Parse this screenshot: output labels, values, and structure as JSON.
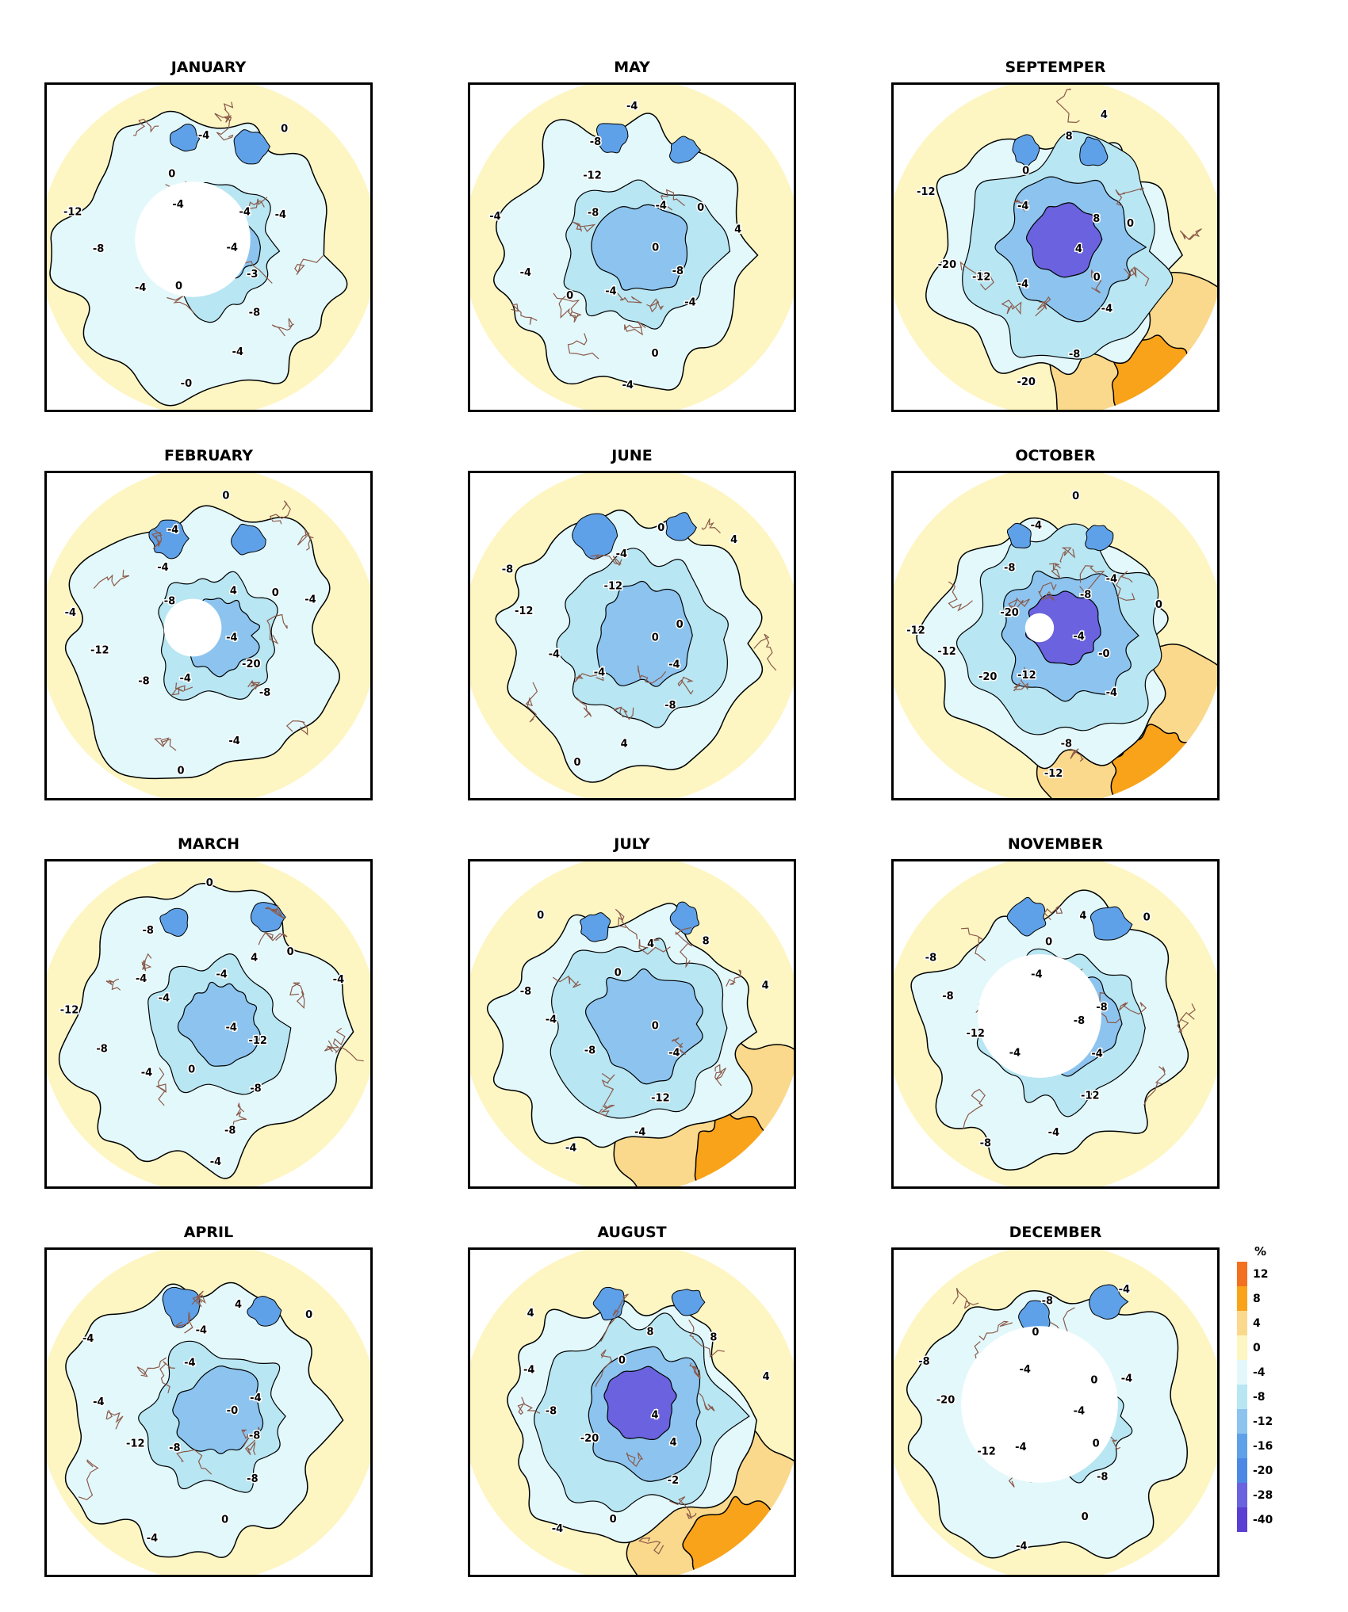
{
  "panels": [
    {
      "month": "JANUARY",
      "labels": [
        "-4",
        "-3",
        "-8",
        "-4",
        "-0",
        "0",
        "-4",
        "-8",
        "-12",
        "-4",
        "0",
        "-4",
        "0",
        "-4",
        "-4"
      ],
      "anom": 0.25,
      "hole": 0.28
    },
    {
      "month": "FEBRUARY",
      "labels": [
        "-4",
        "-20",
        "-8",
        "-4",
        "0",
        "-4",
        "-8",
        "-12",
        "-4",
        "-8",
        "-4",
        "-4",
        "0",
        "4",
        "0",
        "-4"
      ],
      "anom": 0.3,
      "hole": 0.14
    },
    {
      "month": "MARCH",
      "labels": [
        "-4",
        "-12",
        "-8",
        "-8",
        "-4",
        "0",
        "-4",
        "-8",
        "-12",
        "-4",
        "-4",
        "-8",
        "0",
        "-4",
        "4",
        "0",
        "-4"
      ],
      "anom": 0.35,
      "hole": 0
    },
    {
      "month": "APRIL",
      "labels": [
        "-0",
        "-8",
        "-8",
        "0",
        "-4",
        "-8",
        "-12",
        "-4",
        "-4",
        "-4",
        "-4",
        "4",
        "0",
        "-4"
      ],
      "anom": 0.45,
      "hole": 0
    },
    {
      "month": "MAY",
      "labels": [
        "0",
        "-8",
        "-4",
        "0",
        "-4",
        "-4",
        "0",
        "-4",
        "-4",
        "-8",
        "-12",
        "-8",
        "-4",
        "-4",
        "0",
        "4"
      ],
      "anom": 0.5,
      "hole": 0
    },
    {
      "month": "JUNE",
      "labels": [
        "0",
        "-4",
        "-8",
        "4",
        "0",
        "-4",
        "-4",
        "-12",
        "-8",
        "-12",
        "-4",
        "0",
        "4",
        "0"
      ],
      "anom": 0.6,
      "hole": 0
    },
    {
      "month": "JULY",
      "labels": [
        "0",
        "-4",
        "-12",
        "-4",
        "-4",
        "-8",
        "-4",
        "-8",
        "0",
        "0",
        "4",
        "8",
        "4"
      ],
      "anom": 0.7,
      "hole": 0
    },
    {
      "month": "AUGUST",
      "labels": [
        "4",
        "4",
        "-2",
        "0",
        "-4",
        "-20",
        "-8",
        "-4",
        "4",
        "0",
        "8",
        "8",
        "4"
      ],
      "anom": 0.9,
      "hole": 0
    },
    {
      "month": "SEPTEMPER",
      "labels": [
        "4",
        "0",
        "-4",
        "-8",
        "-20",
        "-4",
        "-12",
        "-20",
        "-12",
        "-4",
        "0",
        "8",
        "4",
        "8",
        "0"
      ],
      "anom": 1.0,
      "hole": 0
    },
    {
      "month": "OCTOBER",
      "labels": [
        "-4",
        "-0",
        "-4",
        "-8",
        "-12",
        "-12",
        "-20",
        "-12",
        "-12",
        "-20",
        "-8",
        "-4",
        "0",
        "-8",
        "-4",
        "0"
      ],
      "anom": 0.95,
      "hole": 0.07
    },
    {
      "month": "NOVEMBER",
      "labels": [
        "-8",
        "-4",
        "-12",
        "-4",
        "-8",
        "-4",
        "-12",
        "-8",
        "-8",
        "-4",
        "0",
        "4",
        "0",
        "-8"
      ],
      "anom": 0.55,
      "hole": 0.3
    },
    {
      "month": "DECEMBER",
      "labels": [
        "-4",
        "0",
        "-8",
        "0",
        "-4",
        "-4",
        "-12",
        "-20",
        "-8",
        "-4",
        "0",
        "-8",
        "-4",
        "0",
        "-4"
      ],
      "anom": 0.3,
      "hole": 0.38
    }
  ],
  "legend": {
    "unit": "%",
    "entries": [
      {
        "label": "12",
        "color": "#f37021"
      },
      {
        "label": "8",
        "color": "#f9a31a"
      },
      {
        "label": "4",
        "color": "#fad98c"
      },
      {
        "label": "0",
        "color": "#fdf6c3"
      },
      {
        "label": "-4",
        "color": "#e3f8fb"
      },
      {
        "label": "-8",
        "color": "#b8e6f3"
      },
      {
        "label": "-12",
        "color": "#8cc4ef"
      },
      {
        "label": "-16",
        "color": "#5fa1e8"
      },
      {
        "label": "-20",
        "color": "#4d88e4"
      },
      {
        "label": "-28",
        "color": "#6a62de"
      },
      {
        "label": "-40",
        "color": "#5a3fd2"
      }
    ]
  },
  "colors": {
    "land": "#8b5a4a",
    "contour": "#000000",
    "pale_yellow": "#fdf6c3",
    "light_cyan": "#e3f8fb",
    "medium_blue": "#8cc4ef",
    "purple": "#6a62de",
    "orange": "#f9a31a"
  }
}
